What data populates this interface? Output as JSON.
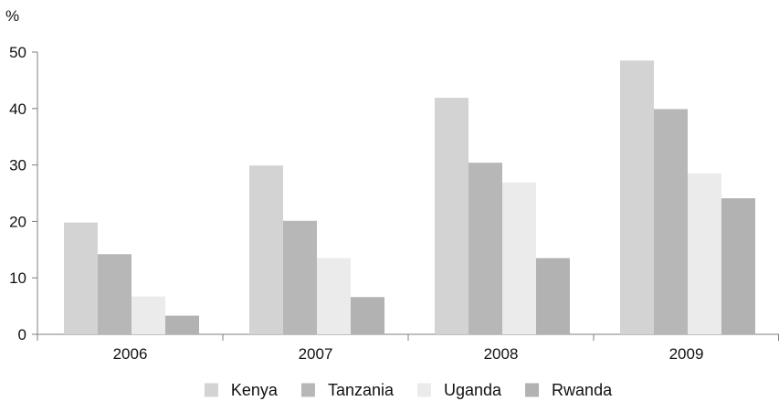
{
  "chart_data": {
    "type": "bar",
    "title": "",
    "xlabel": "",
    "ylabel": "%",
    "ylim": [
      0,
      50
    ],
    "yticks": [
      0,
      10,
      20,
      30,
      40,
      50
    ],
    "categories": [
      "2006",
      "2007",
      "2008",
      "2009"
    ],
    "series": [
      {
        "name": "Kenya",
        "color": "#d3d3d3",
        "values": [
          19.8,
          29.9,
          41.9,
          48.5
        ]
      },
      {
        "name": "Tanzania",
        "color": "#b7b7b7",
        "values": [
          14.2,
          20.1,
          30.4,
          39.9
        ]
      },
      {
        "name": "Uganda",
        "color": "#ebebeb",
        "values": [
          6.7,
          13.5,
          26.9,
          28.5
        ]
      },
      {
        "name": "Rwanda",
        "color": "#b2b2b2",
        "values": [
          3.3,
          6.6,
          13.5,
          24.1
        ]
      }
    ],
    "grid": false,
    "legend_position": "bottom"
  }
}
